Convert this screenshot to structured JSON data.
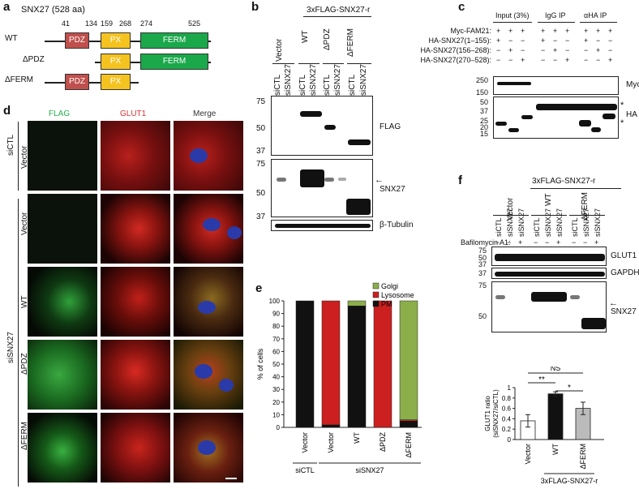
{
  "panels": {
    "a": "a",
    "b": "b",
    "c": "c",
    "d": "d",
    "e": "e",
    "f": "f"
  },
  "a": {
    "title": "SNX27 (528 aa)",
    "numbers": [
      "41",
      "134",
      "159",
      "268",
      "274",
      "525"
    ],
    "rows": [
      {
        "label": "WT",
        "domains": [
          "PDZ",
          "PX",
          "FERM"
        ]
      },
      {
        "label": "ΔPDZ",
        "domains": [
          "PX",
          "FERM"
        ]
      },
      {
        "label": "ΔFERM",
        "domains": [
          "PDZ",
          "PX"
        ]
      }
    ],
    "colors": {
      "PDZ": "#c0504d",
      "PX": "#f5c320",
      "FERM": "#1aa84b"
    }
  },
  "b": {
    "construct": "3xFLAG-SNX27-r",
    "groups": [
      "Vector",
      "WT",
      "ΔPDZ",
      "ΔFERM"
    ],
    "lanes": [
      "siCTL",
      "siSNX27",
      "siCTL",
      "siSNX27",
      "siCTL",
      "siSNX27",
      "siCTL",
      "siSNX27"
    ],
    "blots": [
      "FLAG",
      "SNX27",
      "β-Tubulin"
    ],
    "mw_flag": [
      "75",
      "50",
      "37"
    ],
    "mw_snx": [
      "75",
      "50",
      "37"
    ],
    "arrow": "←"
  },
  "c": {
    "headers": [
      "Input (3%)",
      "IgG IP",
      "αHA IP"
    ],
    "rows": [
      {
        "label": "Myc-FAM21:",
        "signs": [
          "+",
          "+",
          "+",
          "+",
          "+",
          "+",
          "+",
          "+",
          "+"
        ]
      },
      {
        "label": "HA-SNX27(1–155):",
        "signs": [
          "+",
          "−",
          "−",
          "+",
          "−",
          "−",
          "+",
          "−",
          "−"
        ]
      },
      {
        "label": "HA-SNX27(156–268):",
        "signs": [
          "−",
          "+",
          "−",
          "−",
          "+",
          "−",
          "−",
          "+",
          "−"
        ]
      },
      {
        "label": "HA-SNX27(270–528):",
        "signs": [
          "−",
          "−",
          "+",
          "−",
          "−",
          "+",
          "−",
          "−",
          "+"
        ]
      }
    ],
    "blots": [
      "Myc",
      "HA"
    ],
    "mw_myc": [
      "250",
      "150"
    ],
    "mw_ha": [
      "50",
      "37",
      "25",
      "20",
      "15"
    ],
    "star": "*"
  },
  "d": {
    "channels": [
      "FLAG",
      "GLUT1",
      "Merge"
    ],
    "channel_colors": [
      "#23b14d",
      "#e03030",
      "#333333"
    ],
    "rows": [
      "Vector",
      "Vector",
      "WT",
      "ΔPDZ",
      "ΔFERM"
    ],
    "groups": [
      "siCTL",
      "siSNX27"
    ]
  },
  "e": {
    "chart_data": {
      "type": "bar",
      "categories": [
        "Vector",
        "Vector",
        "WT",
        "ΔPDZ",
        "ΔFERM"
      ],
      "series": [
        {
          "name": "PM",
          "values": [
            100,
            2,
            96,
            0,
            5
          ]
        },
        {
          "name": "Lysosome",
          "values": [
            0,
            98,
            0,
            100,
            1
          ]
        },
        {
          "name": "Golgi",
          "values": [
            0,
            0,
            4,
            0,
            94
          ]
        }
      ],
      "ylabel": "% of cells",
      "ylim": [
        0,
        100
      ],
      "yticks": [
        "0",
        "10",
        "20",
        "30",
        "40",
        "50",
        "60",
        "70",
        "80",
        "90",
        "100"
      ],
      "groups": [
        "siCTL",
        "siSNX27"
      ],
      "colors": {
        "Golgi": "#8cae4a",
        "Lysosome": "#cc1f1f",
        "PM": "#111111"
      }
    }
  },
  "f": {
    "construct": "3xFLAG-SNX27-r",
    "groups": [
      "Vector",
      "WT",
      "ΔFERM"
    ],
    "lanes": [
      "siCTL",
      "siSNX27",
      "siSNX27",
      "siCTL",
      "siSNX27",
      "siSNX27",
      "siCTL",
      "siSNX27",
      "siSNX27"
    ],
    "bafilomycin_label": "Bafilomycin A1:",
    "bafilomycin": [
      "−",
      "−",
      "+",
      "−",
      "−",
      "+",
      "−",
      "−",
      "+"
    ],
    "blots": [
      "GLUT1",
      "GAPDH",
      "SNX27"
    ],
    "mw_glut": [
      "75",
      "50",
      "37"
    ],
    "mw_gapdh": [
      "37"
    ],
    "mw_snx": [
      "75",
      "50"
    ],
    "arrow": "←",
    "chart_data": {
      "type": "bar",
      "categories": [
        "Vector",
        "WT",
        "ΔFERM"
      ],
      "values": [
        0.36,
        0.88,
        0.6
      ],
      "errors": [
        0.12,
        0.04,
        0.12
      ],
      "ylabel": "GLUT1 ratio\n(siSNX27/siCTL)",
      "ylim": [
        0,
        1
      ],
      "yticks": [
        "0",
        "0.2",
        "0.4",
        "0.6",
        "0.8",
        "1"
      ],
      "group_label": "3xFLAG-SNX27-r",
      "significance": [
        {
          "label": "NS"
        },
        {
          "label": "**"
        },
        {
          "label": "*"
        }
      ],
      "colors": [
        "#ffffff",
        "#111111",
        "#bbbbbb"
      ]
    }
  }
}
